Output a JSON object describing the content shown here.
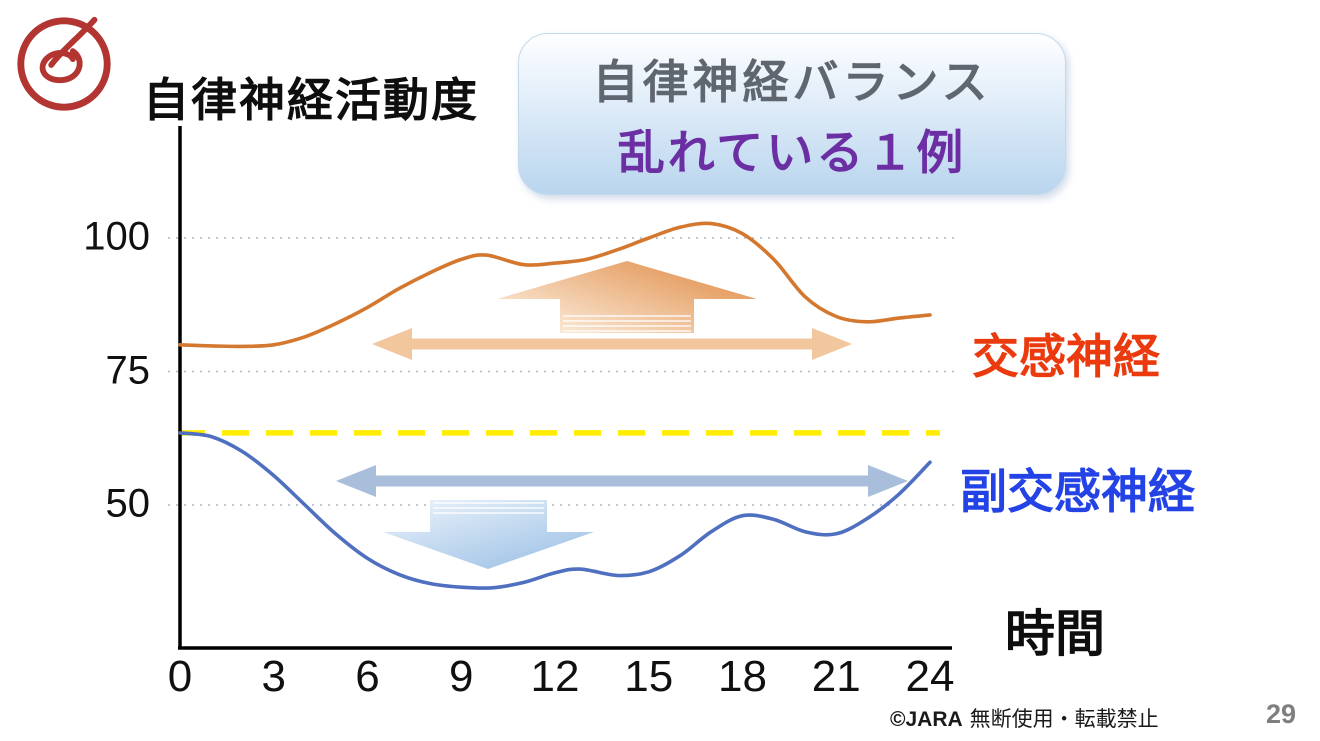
{
  "slide": {
    "axis_title": "自律神経活動度",
    "title_box": {
      "line1": "自律神経バランス",
      "line2": "乱れている１例"
    },
    "series_labels": {
      "sympathetic": "交感神経",
      "parasympathetic": "副交感神経"
    },
    "x_axis_label": "時間",
    "footer": {
      "copyright": "©JARA",
      "notice": "無断使用・転載禁止",
      "page_number": "29"
    }
  },
  "colors": {
    "title_line1": "#5f6670",
    "title_line2": "#6b2fa3",
    "sympathetic_label": "#ea3a0e",
    "parasympathetic_label": "#2443e6",
    "curve_orange": "#d4782f",
    "curve_blue": "#4f6fc0",
    "reference_yellow": "#ffec00",
    "span_arrow_orange": "#f2c79e",
    "span_arrow_blue": "#a9bedb",
    "block_arrow_orange_light": "#fdf2e4",
    "block_arrow_orange_dark": "#e08b45",
    "block_arrow_blue_light": "#edf4fb",
    "block_arrow_blue_dark": "#9ec2e6",
    "grid_line": "#aab4c6",
    "axis_black": "#000000",
    "logo_red": "#b23531",
    "page_number": "#7f7f7f"
  },
  "chart_data": {
    "type": "line",
    "title": "自律神経バランス 乱れている１例",
    "ylabel": "自律神経活動度",
    "xlabel": "時間",
    "x_ticks": [
      0,
      3,
      6,
      9,
      12,
      15,
      18,
      21,
      24
    ],
    "y_ticks": [
      100,
      75,
      50
    ],
    "xlim": [
      0,
      24
    ],
    "ylim": [
      25,
      110
    ],
    "grid": "horizontal dotted lines at y_ticks",
    "legend_position": "right outside",
    "reference_line": {
      "value": 63.5,
      "style": "dashed",
      "color": "#ffec00"
    },
    "series": [
      {
        "key": "sympathetic",
        "name": "交感神経",
        "color": "#d4782f",
        "label_color": "#ea3a0e",
        "points": [
          [
            0,
            80
          ],
          [
            1,
            79.8
          ],
          [
            2,
            79.7
          ],
          [
            3,
            80
          ],
          [
            4,
            81.5
          ],
          [
            5,
            84
          ],
          [
            6,
            87
          ],
          [
            7,
            90.5
          ],
          [
            8,
            93.5
          ],
          [
            9,
            96
          ],
          [
            9.8,
            96.8
          ],
          [
            11,
            95
          ],
          [
            12,
            95.3
          ],
          [
            13,
            96
          ],
          [
            14,
            97.8
          ],
          [
            15,
            100
          ],
          [
            16,
            102
          ],
          [
            17,
            102.7
          ],
          [
            18,
            100.8
          ],
          [
            19,
            96
          ],
          [
            20,
            89
          ],
          [
            21,
            85.3
          ],
          [
            22,
            84.3
          ],
          [
            23,
            85
          ],
          [
            24,
            85.6
          ]
        ]
      },
      {
        "key": "parasympathetic",
        "name": "副交感神経",
        "color": "#4f6fc0",
        "label_color": "#2443e6",
        "points": [
          [
            0,
            63.5
          ],
          [
            1,
            62.8
          ],
          [
            2,
            60
          ],
          [
            3,
            55.5
          ],
          [
            4,
            50
          ],
          [
            5,
            44.5
          ],
          [
            6,
            40
          ],
          [
            7,
            37
          ],
          [
            8,
            35.3
          ],
          [
            9,
            34.6
          ],
          [
            10,
            34.5
          ],
          [
            11,
            35.5
          ],
          [
            12,
            37.3
          ],
          [
            12.8,
            38
          ],
          [
            14,
            36.8
          ],
          [
            15,
            37.5
          ],
          [
            16,
            40.5
          ],
          [
            17,
            45
          ],
          [
            18,
            48
          ],
          [
            19,
            47.3
          ],
          [
            20,
            45
          ],
          [
            21,
            44.6
          ],
          [
            22,
            47.5
          ],
          [
            23,
            52
          ],
          [
            24,
            58
          ]
        ]
      }
    ],
    "annotations": [
      {
        "id": "up-block-arrow",
        "type": "block-arrow",
        "direction": "up"
      },
      {
        "id": "sympathetic-range-arrow",
        "type": "double-arrow",
        "direction": "horizontal"
      },
      {
        "id": "down-block-arrow",
        "type": "block-arrow",
        "direction": "down"
      },
      {
        "id": "parasympathetic-range-arrow",
        "type": "double-arrow",
        "direction": "horizontal"
      }
    ]
  }
}
